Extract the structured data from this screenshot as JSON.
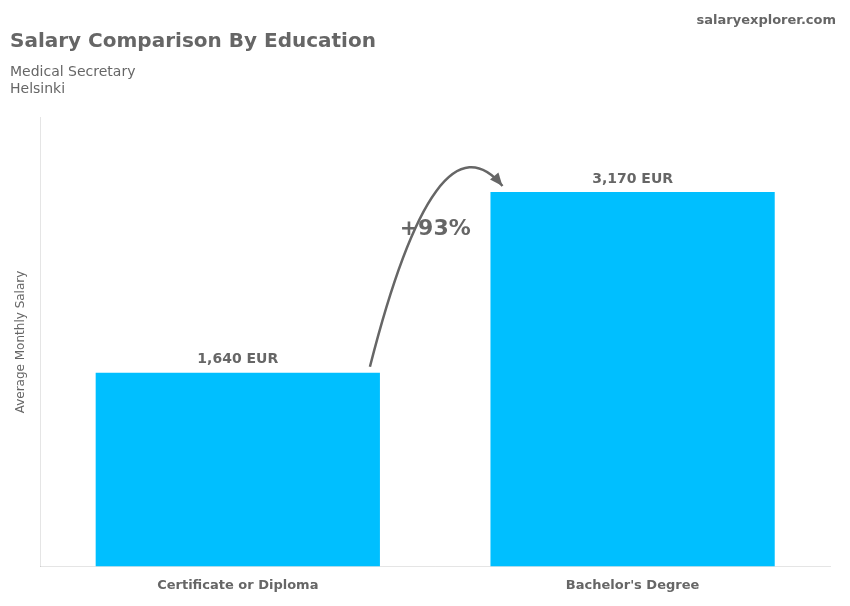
{
  "chart_data": {
    "type": "bar",
    "title": "Salary Comparison By Education",
    "subtitle": [
      "Medical Secretary",
      "Helsinki"
    ],
    "ylabel": "Average Monthly Salary",
    "categories": [
      "Certificate or Diploma",
      "Bachelor's Degree"
    ],
    "values": [
      1640,
      3170
    ],
    "value_labels": [
      "1,640 EUR",
      "3,170 EUR"
    ],
    "data_labels": true,
    "color": "#00BFFF",
    "ylim": [
      0,
      3800
    ],
    "tick_labels": "x",
    "grid": false,
    "annotations": [
      "+93%",
      "salaryexplorer.com"
    ]
  }
}
